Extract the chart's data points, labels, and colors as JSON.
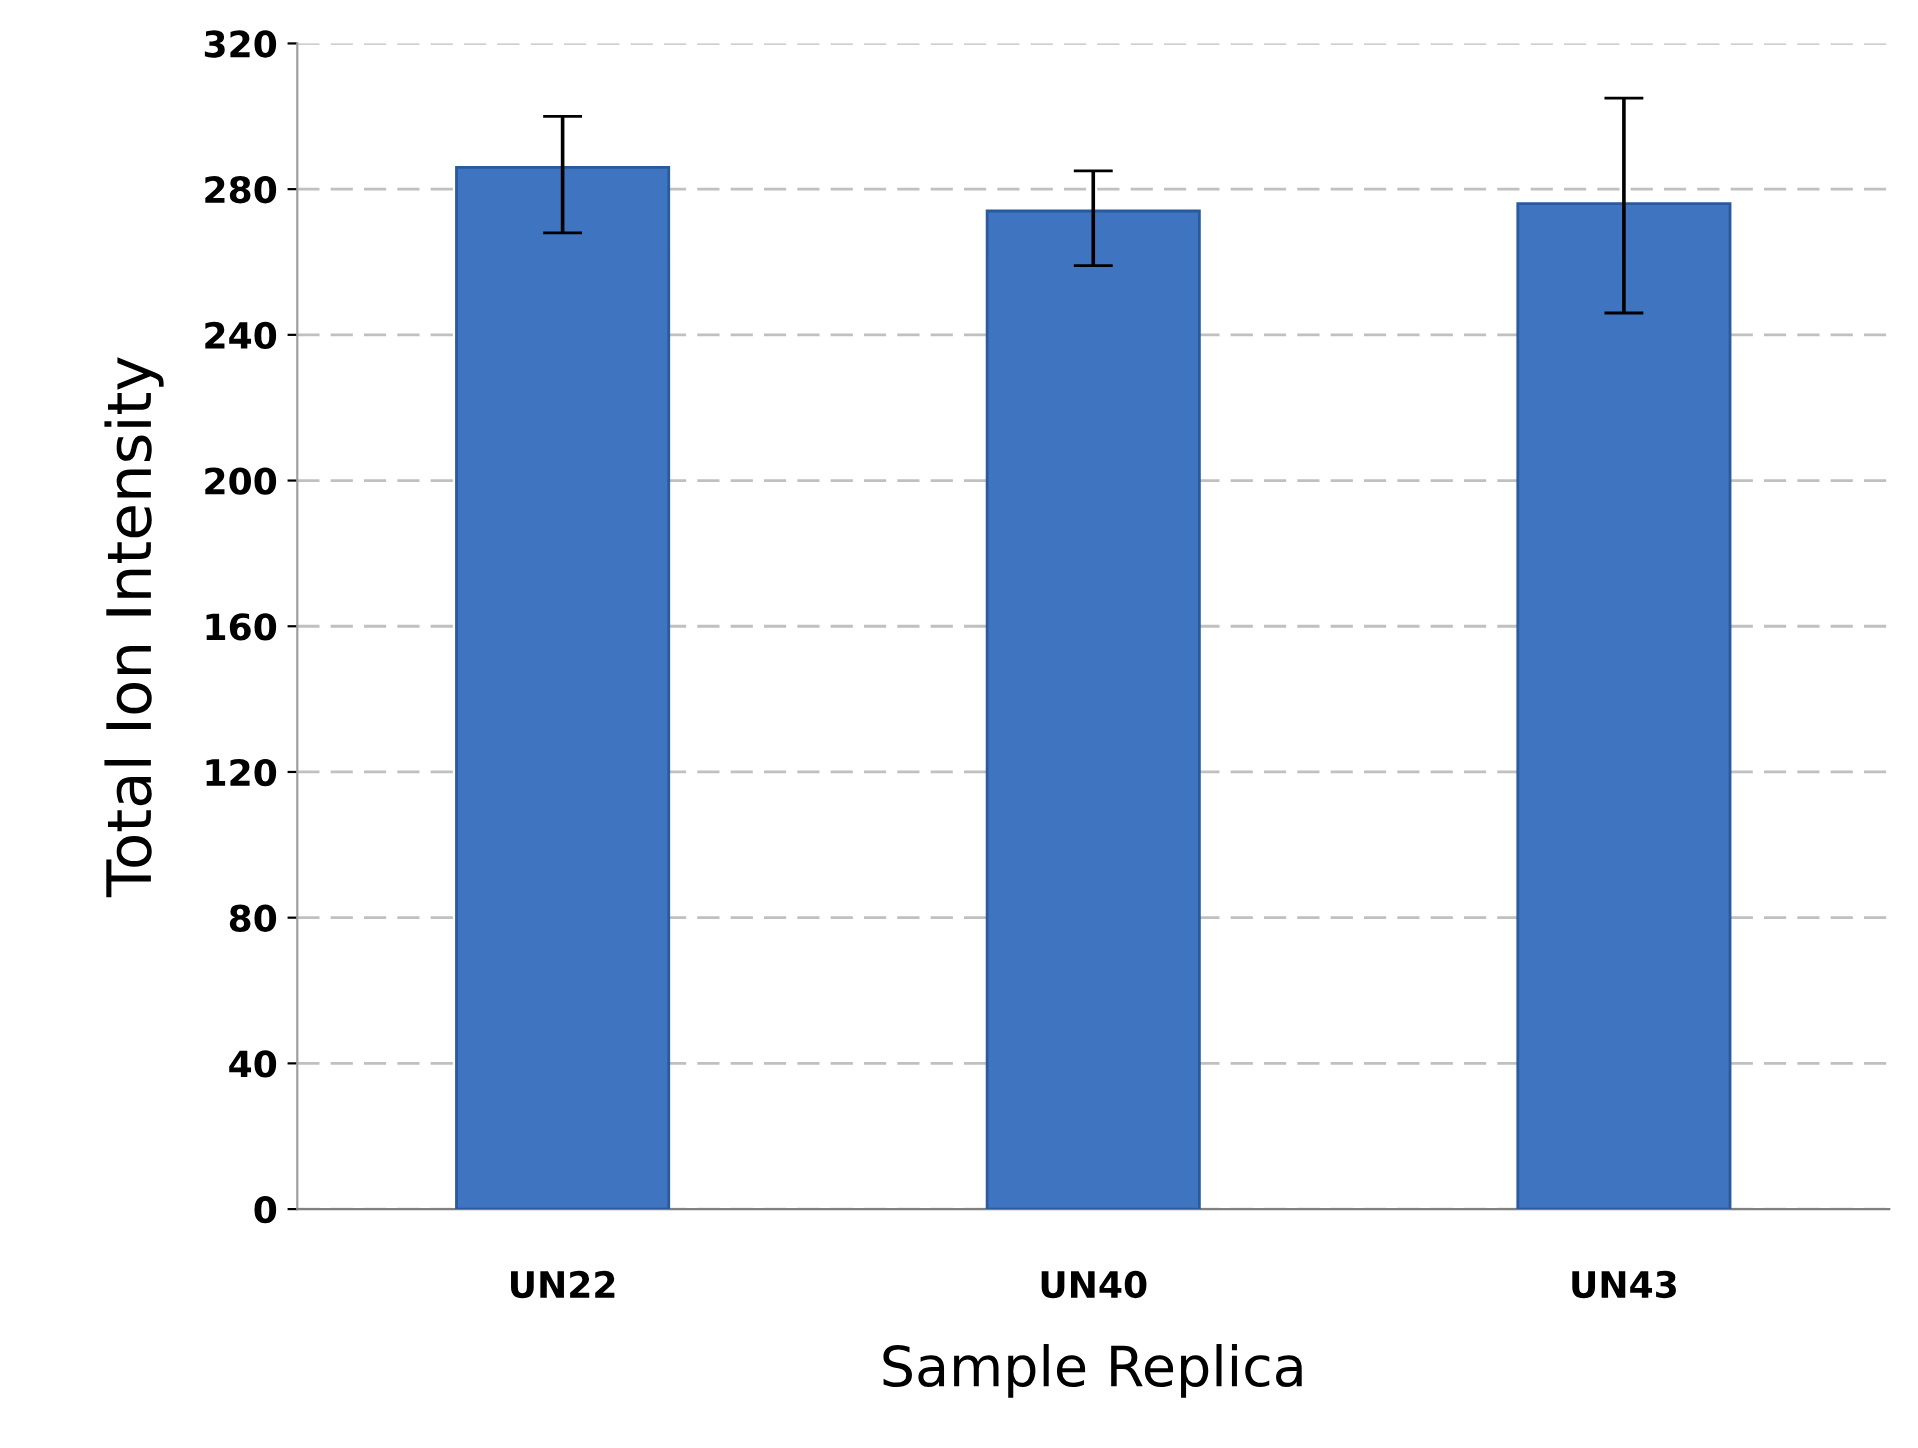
{
  "chart_data": {
    "type": "bar",
    "xlabel": "Sample Replica",
    "ylabel": "Total Ion Intensity",
    "categories": [
      "UN22",
      "UN40",
      "UN43"
    ],
    "values": [
      286,
      274,
      276
    ],
    "errors": [
      [
        268,
        300
      ],
      [
        259,
        285
      ],
      [
        246,
        305
      ]
    ],
    "color": "#3f74c0",
    "ylim": [
      0,
      320
    ],
    "yticks": [
      0,
      40,
      80,
      120,
      160,
      200,
      240,
      280,
      320
    ],
    "grid": "y"
  }
}
